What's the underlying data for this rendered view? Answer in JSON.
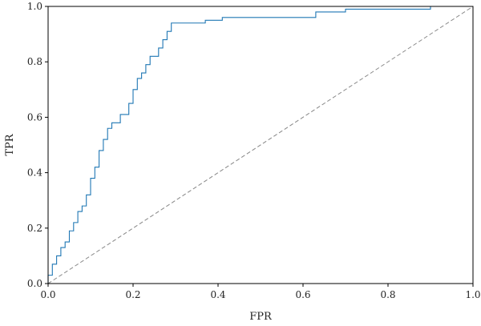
{
  "chart_data": {
    "type": "line",
    "title": "",
    "xlabel": "FPR",
    "ylabel": "TPR",
    "xlim": [
      0.0,
      1.0
    ],
    "ylim": [
      0.0,
      1.0
    ],
    "xticks": [
      "0.0",
      "0.2",
      "0.4",
      "0.6",
      "0.8",
      "1.0"
    ],
    "yticks": [
      "0.0",
      "0.2",
      "0.4",
      "0.6",
      "0.8",
      "1.0"
    ],
    "grid": false,
    "legend": "none",
    "series": [
      {
        "color": "#1f77b4",
        "style": "solid-step",
        "x": [
          0.0,
          0.0,
          0.01,
          0.01,
          0.02,
          0.02,
          0.03,
          0.03,
          0.04,
          0.04,
          0.05,
          0.05,
          0.06,
          0.06,
          0.07,
          0.07,
          0.08,
          0.08,
          0.09,
          0.09,
          0.1,
          0.1,
          0.11,
          0.11,
          0.12,
          0.12,
          0.13,
          0.13,
          0.14,
          0.14,
          0.15,
          0.15,
          0.17,
          0.17,
          0.19,
          0.19,
          0.2,
          0.2,
          0.21,
          0.21,
          0.22,
          0.22,
          0.23,
          0.23,
          0.24,
          0.24,
          0.26,
          0.26,
          0.27,
          0.27,
          0.28,
          0.28,
          0.29,
          0.29,
          0.3,
          0.3,
          0.37,
          0.37,
          0.41,
          0.41,
          0.63,
          0.63,
          0.7,
          0.7,
          0.9,
          0.9,
          1.0
        ],
        "y": [
          0.0,
          0.03,
          0.03,
          0.07,
          0.07,
          0.1,
          0.1,
          0.13,
          0.13,
          0.15,
          0.15,
          0.19,
          0.19,
          0.22,
          0.22,
          0.26,
          0.26,
          0.28,
          0.28,
          0.32,
          0.32,
          0.38,
          0.38,
          0.42,
          0.42,
          0.48,
          0.48,
          0.52,
          0.52,
          0.56,
          0.56,
          0.58,
          0.58,
          0.61,
          0.61,
          0.65,
          0.65,
          0.7,
          0.7,
          0.74,
          0.74,
          0.76,
          0.76,
          0.79,
          0.79,
          0.82,
          0.82,
          0.85,
          0.85,
          0.88,
          0.88,
          0.91,
          0.91,
          0.94,
          0.94,
          0.94,
          0.94,
          0.95,
          0.95,
          0.96,
          0.96,
          0.98,
          0.98,
          0.99,
          0.99,
          1.0,
          1.0
        ]
      },
      {
        "color": "#888888",
        "style": "dashed",
        "x": [
          0.0,
          1.0
        ],
        "y": [
          0.0,
          1.0
        ]
      }
    ]
  }
}
